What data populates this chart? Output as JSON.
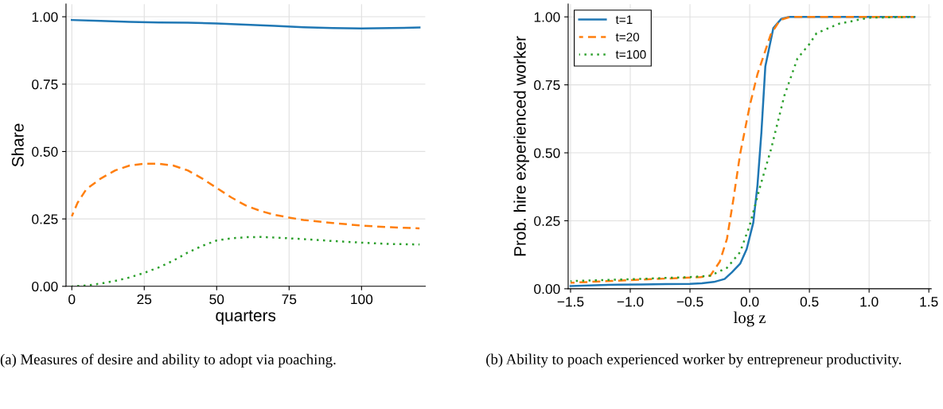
{
  "chart_data": [
    {
      "type": "line",
      "xlabel": "quarters",
      "ylabel": "Share",
      "xlim": [
        -2,
        122
      ],
      "ylim": [
        0,
        1.047
      ],
      "xticks": [
        0,
        25,
        50,
        75,
        100
      ],
      "yticks": [
        {
          "value": 0,
          "label": "0.00"
        },
        {
          "value": 0.25,
          "label": "0.25"
        },
        {
          "value": 0.5,
          "label": "0.50"
        },
        {
          "value": 0.75,
          "label": "0.75"
        },
        {
          "value": 1,
          "label": "1.00"
        }
      ],
      "grid": true,
      "legend": false,
      "annotations": [
        "(a) Measures of desire and ability to adopt via poaching."
      ],
      "series": [
        {
          "color": "#1f77b4",
          "line_style": "solid",
          "x": [
            0,
            10,
            20,
            30,
            40,
            50,
            60,
            70,
            80,
            90,
            100,
            110,
            120
          ],
          "values": [
            0.988,
            0.985,
            0.981,
            0.979,
            0.978,
            0.975,
            0.971,
            0.966,
            0.961,
            0.958,
            0.957,
            0.958,
            0.96
          ]
        },
        {
          "color": "#ff7f0e",
          "line_style": "dashed",
          "x": [
            0,
            2,
            5,
            10,
            15,
            20,
            25,
            30,
            35,
            40,
            45,
            50,
            55,
            60,
            65,
            70,
            75,
            80,
            90,
            100,
            110,
            120
          ],
          "values": [
            0.26,
            0.31,
            0.36,
            0.4,
            0.43,
            0.448,
            0.455,
            0.455,
            0.448,
            0.43,
            0.4,
            0.365,
            0.33,
            0.3,
            0.28,
            0.265,
            0.255,
            0.246,
            0.235,
            0.225,
            0.219,
            0.215
          ]
        },
        {
          "color": "#2ca02c",
          "line_style": "dotted",
          "x": [
            0,
            5,
            10,
            15,
            20,
            25,
            30,
            35,
            40,
            45,
            50,
            55,
            60,
            65,
            70,
            75,
            80,
            90,
            100,
            110,
            120
          ],
          "values": [
            0.0,
            0.003,
            0.01,
            0.02,
            0.033,
            0.05,
            0.07,
            0.095,
            0.125,
            0.15,
            0.17,
            0.178,
            0.182,
            0.183,
            0.181,
            0.178,
            0.175,
            0.168,
            0.162,
            0.157,
            0.155
          ]
        }
      ]
    },
    {
      "type": "line",
      "xlabel": "log z",
      "ylabel": "Prob. hire experienced worker",
      "xlim": [
        -1.52,
        1.52
      ],
      "ylim": [
        0,
        1.047
      ],
      "xticks": [
        {
          "value": -1.5,
          "label": "−1.5"
        },
        {
          "value": -1.0,
          "label": "−1.0"
        },
        {
          "value": -0.5,
          "label": "−0.5"
        },
        {
          "value": 0.0,
          "label": "0.0"
        },
        {
          "value": 0.5,
          "label": "0.5"
        },
        {
          "value": 1.0,
          "label": "1.0"
        },
        {
          "value": 1.5,
          "label": "1.5"
        }
      ],
      "yticks": [
        {
          "value": 0,
          "label": "0.00"
        },
        {
          "value": 0.25,
          "label": "0.25"
        },
        {
          "value": 0.5,
          "label": "0.50"
        },
        {
          "value": 0.75,
          "label": "0.75"
        },
        {
          "value": 1,
          "label": "1.00"
        }
      ],
      "grid": true,
      "legend": "top left",
      "annotations": [
        "(b) Ability to poach experienced worker by entrepreneur productivity."
      ],
      "series": [
        {
          "name": "t=1",
          "color": "#1f77b4",
          "line_style": "solid",
          "x": [
            -1.5,
            -1.3,
            -1.1,
            -0.9,
            -0.7,
            -0.5,
            -0.4,
            -0.3,
            -0.21,
            -0.15,
            -0.08,
            -0.025,
            0.03,
            0.065,
            0.098,
            0.131,
            0.198,
            0.265,
            0.33,
            1.38
          ],
          "values": [
            0.01,
            0.013,
            0.015,
            0.016,
            0.017,
            0.018,
            0.02,
            0.025,
            0.036,
            0.06,
            0.092,
            0.146,
            0.243,
            0.38,
            0.574,
            0.818,
            0.959,
            0.993,
            1.0,
            1.0
          ]
        },
        {
          "name": "t=20",
          "color": "#ff7f0e",
          "line_style": "dashed",
          "x": [
            -1.5,
            -1.2,
            -1.0,
            -0.8,
            -0.6,
            -0.41,
            -0.33,
            -0.25,
            -0.19,
            -0.136,
            -0.08,
            0.0,
            0.065,
            0.176,
            0.253,
            0.34,
            1.38
          ],
          "values": [
            0.022,
            0.028,
            0.032,
            0.036,
            0.039,
            0.043,
            0.048,
            0.1,
            0.184,
            0.33,
            0.496,
            0.672,
            0.789,
            0.935,
            0.988,
            1.0,
            1.0
          ]
        },
        {
          "name": "t=100",
          "color": "#2ca02c",
          "line_style": "dotted",
          "x": [
            -1.5,
            -1.0,
            -0.5,
            -0.33,
            -0.19,
            -0.08,
            0.0,
            0.09,
            0.18,
            0.29,
            0.4,
            0.5,
            0.56,
            0.75,
            1.0,
            1.38
          ],
          "values": [
            0.028,
            0.035,
            0.043,
            0.048,
            0.077,
            0.135,
            0.233,
            0.38,
            0.515,
            0.71,
            0.847,
            0.9,
            0.94,
            0.975,
            0.997,
            1.0
          ]
        }
      ]
    }
  ]
}
